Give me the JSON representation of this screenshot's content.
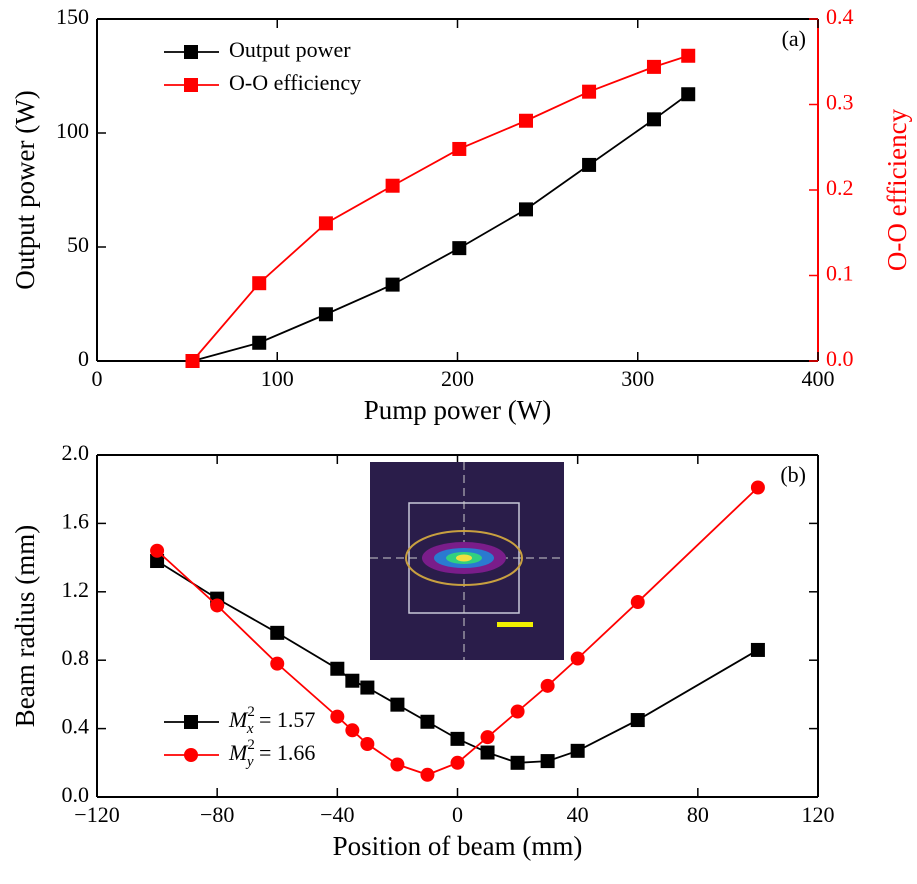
{
  "chart_data": [
    {
      "type": "line",
      "annotation": "(a)",
      "xlabel": "Pump power (W)",
      "ylabel": "Output power (W)",
      "y2label": "O-O efficiency",
      "x": [
        53,
        90,
        127,
        164,
        201,
        238,
        273,
        309,
        328
      ],
      "series": [
        {
          "name": "Output power",
          "color": "#000000",
          "marker": "square",
          "values": [
            0,
            8,
            20.5,
            33.5,
            49.5,
            66.5,
            86,
            106,
            117
          ]
        },
        {
          "name": "O-O efficiency",
          "color": "#ff0000",
          "marker": "square",
          "axis": "y2",
          "values": [
            0,
            0.091,
            0.161,
            0.205,
            0.248,
            0.281,
            0.315,
            0.344,
            0.357
          ]
        }
      ],
      "xlim": [
        0,
        400
      ],
      "xticks": [
        0,
        100,
        200,
        300,
        400
      ],
      "ylim": [
        0,
        150
      ],
      "yticks": [
        0,
        50,
        100,
        150
      ],
      "y2lim": [
        0,
        0.4
      ],
      "y2ticks": [
        {
          "value": 0,
          "label": "0.0"
        },
        0.1,
        0.2,
        0.3,
        0.4
      ],
      "legend": "upper left"
    },
    {
      "type": "line",
      "annotation": "(b)",
      "xlabel": "Position of beam (mm)",
      "ylabel": "Beam radius (mm)",
      "series": [
        {
          "name": "M_x^2 = 1.57",
          "color": "#000000",
          "marker": "square",
          "x": [
            -100,
            -80,
            -60,
            -40,
            -35,
            -30,
            -20,
            -10,
            0,
            10,
            20,
            30,
            40,
            60,
            100
          ],
          "values": [
            1.38,
            1.16,
            0.96,
            0.75,
            0.68,
            0.64,
            0.54,
            0.44,
            0.34,
            0.26,
            0.2,
            0.21,
            0.27,
            0.45,
            0.86
          ]
        },
        {
          "name": "M_y^2 = 1.66",
          "color": "#ff0000",
          "marker": "circle",
          "x": [
            -100,
            -80,
            -60,
            -40,
            -35,
            -30,
            -20,
            -10,
            0,
            10,
            20,
            30,
            40,
            60,
            100
          ],
          "values": [
            1.44,
            1.12,
            0.78,
            0.47,
            0.39,
            0.31,
            0.19,
            0.13,
            0.2,
            0.35,
            0.5,
            0.65,
            0.81,
            1.14,
            1.81
          ]
        }
      ],
      "xlim": [
        -120,
        120
      ],
      "xticks": [
        {
          "value": -120,
          "label": "−120"
        },
        {
          "value": -80,
          "label": "−80"
        },
        {
          "value": -40,
          "label": "−40"
        },
        0,
        40,
        80,
        120
      ],
      "ylim": [
        0,
        2
      ],
      "yticks": [
        {
          "value": 0,
          "label": "0.0"
        },
        0.4,
        0.8,
        1.2,
        1.6,
        {
          "value": 2,
          "label": "2.0"
        }
      ],
      "legend": "lower left"
    }
  ]
}
